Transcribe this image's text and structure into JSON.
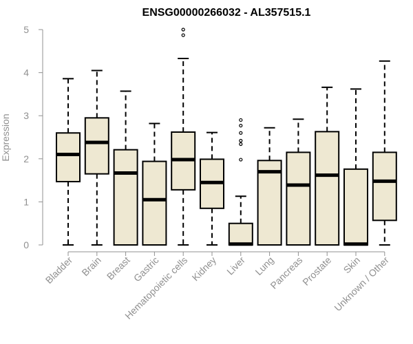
{
  "chart_data": {
    "type": "box",
    "title": "ENSG00000266032 - AL357515.1",
    "xlabel": "",
    "ylabel": "Expression",
    "ylim": [
      0,
      5
    ],
    "yticks": [
      "0",
      "1",
      "2",
      "3",
      "4",
      "5"
    ],
    "box_fill": "#EEE8D2",
    "box_stroke": "#000000",
    "axis_color": "#909090",
    "categories": [
      "Bladder",
      "Brain",
      "Breast",
      "Gastric",
      "Hematopoietic cells",
      "Kidney",
      "Liver",
      "Lung",
      "Pancreas",
      "Prostate",
      "Skin",
      "Unknown / Other"
    ],
    "boxes": [
      {
        "category": "Bladder",
        "min": 0,
        "q1": 1.47,
        "median": 2.1,
        "q3": 2.6,
        "max": 3.86,
        "outliers": []
      },
      {
        "category": "Brain",
        "min": 0,
        "q1": 1.65,
        "median": 2.38,
        "q3": 2.95,
        "max": 4.05,
        "outliers": []
      },
      {
        "category": "Breast",
        "min": 0,
        "q1": 0,
        "median": 1.67,
        "q3": 2.21,
        "max": 3.57,
        "outliers": []
      },
      {
        "category": "Gastric",
        "min": 0,
        "q1": 0,
        "median": 1.05,
        "q3": 1.94,
        "max": 2.82,
        "outliers": []
      },
      {
        "category": "Hematopoietic cells",
        "min": 0,
        "q1": 1.28,
        "median": 1.98,
        "q3": 2.62,
        "max": 4.33,
        "outliers": [
          4.87,
          5.0
        ]
      },
      {
        "category": "Kidney",
        "min": 0,
        "q1": 0.85,
        "median": 1.45,
        "q3": 1.99,
        "max": 2.61,
        "outliers": []
      },
      {
        "category": "Liver",
        "min": 0,
        "q1": 0,
        "median": 0.02,
        "q3": 0.5,
        "max": 1.13,
        "outliers": [
          1.98,
          2.34,
          2.42,
          2.6,
          2.77,
          2.9
        ]
      },
      {
        "category": "Lung",
        "min": 0,
        "q1": 0,
        "median": 1.7,
        "q3": 1.96,
        "max": 2.72,
        "outliers": []
      },
      {
        "category": "Pancreas",
        "min": 0,
        "q1": 0,
        "median": 1.39,
        "q3": 2.15,
        "max": 2.92,
        "outliers": []
      },
      {
        "category": "Prostate",
        "min": 0,
        "q1": 0,
        "median": 1.62,
        "q3": 2.63,
        "max": 3.66,
        "outliers": []
      },
      {
        "category": "Skin",
        "min": 0,
        "q1": 0,
        "median": 0.02,
        "q3": 1.76,
        "max": 3.62,
        "outliers": []
      },
      {
        "category": "Unknown / Other",
        "min": 0,
        "q1": 0.57,
        "median": 1.48,
        "q3": 2.15,
        "max": 4.27,
        "outliers": []
      }
    ]
  }
}
